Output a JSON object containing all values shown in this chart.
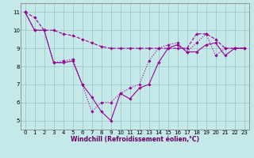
{
  "xlabel": "Windchill (Refroidissement éolien,°C)",
  "background_color": "#c5e8e8",
  "line_color": "#990099",
  "grid_color": "#a0c8c8",
  "xlim": [
    -0.5,
    23.5
  ],
  "ylim": [
    4.5,
    11.5
  ],
  "yticks": [
    5,
    6,
    7,
    8,
    9,
    10,
    11
  ],
  "xticks": [
    0,
    1,
    2,
    3,
    4,
    5,
    6,
    7,
    8,
    9,
    10,
    11,
    12,
    13,
    14,
    15,
    16,
    17,
    18,
    19,
    20,
    21,
    22,
    23
  ],
  "line1_x": [
    0,
    1,
    2,
    3,
    4,
    5,
    6,
    7,
    8,
    9,
    10,
    11,
    12,
    13,
    14,
    15,
    16,
    17,
    18,
    19,
    20,
    21,
    22,
    23
  ],
  "line1_y": [
    11.0,
    10.7,
    10.0,
    10.0,
    9.8,
    9.7,
    9.5,
    9.3,
    9.1,
    9.0,
    9.0,
    9.0,
    9.0,
    9.0,
    9.0,
    9.0,
    9.0,
    9.0,
    9.8,
    9.8,
    9.5,
    9.0,
    9.0,
    9.0
  ],
  "line2_x": [
    0,
    1,
    2,
    3,
    4,
    5,
    6,
    7,
    8,
    9,
    10,
    11,
    12,
    13,
    14,
    15,
    16,
    17,
    18,
    19,
    20,
    21,
    22,
    23
  ],
  "line2_y": [
    11.0,
    10.0,
    10.0,
    8.2,
    8.2,
    8.3,
    7.0,
    6.3,
    5.5,
    5.0,
    6.5,
    6.2,
    6.8,
    7.0,
    8.2,
    9.0,
    9.2,
    8.8,
    8.8,
    9.2,
    9.3,
    8.6,
    9.0,
    9.0
  ],
  "line3_x": [
    0,
    1,
    2,
    3,
    4,
    5,
    6,
    7,
    8,
    9,
    10,
    11,
    12,
    13,
    14,
    15,
    16,
    17,
    18,
    19,
    20,
    21,
    22,
    23
  ],
  "line3_y": [
    11.0,
    10.0,
    10.0,
    8.2,
    8.3,
    8.4,
    7.0,
    5.5,
    6.0,
    6.0,
    6.5,
    6.8,
    7.0,
    8.3,
    9.0,
    9.2,
    9.3,
    8.8,
    9.3,
    9.8,
    8.6,
    9.0,
    9.0,
    9.0
  ],
  "xlabel_color": "#660066",
  "xlabel_fontsize": 5.5,
  "tick_fontsize": 5.0
}
